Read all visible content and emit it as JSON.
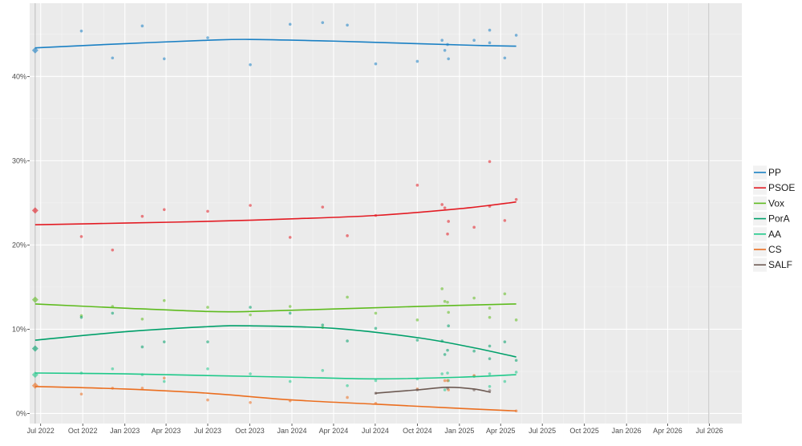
{
  "chart_data": {
    "type": "scatter",
    "title": "",
    "xlabel": "",
    "ylabel": "",
    "ylim": [
      -1.2,
      48.7
    ],
    "xlim": [
      "2022-06-07",
      "2026-09-10"
    ],
    "grid": true,
    "legend_position": "right",
    "x_tick_labels": [
      "Jul 2022",
      "Oct 2022",
      "Jan 2023",
      "Apr 2023",
      "Jul 2023",
      "Oct 2023",
      "Jan 2024",
      "Apr 2024",
      "Jul 2024",
      "Oct 2024",
      "Jan 2025",
      "Apr 2025",
      "Jul 2025",
      "Oct 2025",
      "Jan 2026",
      "Apr 2026",
      "Jul 2026"
    ],
    "x_tick_dates": [
      "2022-07-01",
      "2022-10-01",
      "2023-01-01",
      "2023-04-01",
      "2023-07-01",
      "2023-10-01",
      "2024-01-01",
      "2024-04-01",
      "2024-07-01",
      "2024-10-01",
      "2025-01-01",
      "2025-04-01",
      "2025-07-01",
      "2025-10-01",
      "2026-01-01",
      "2026-04-01",
      "2026-07-01"
    ],
    "y_ticks": [
      0,
      10,
      20,
      30,
      40
    ],
    "y_tick_labels": [
      "0%",
      "10%",
      "20%",
      "30%",
      "40%"
    ],
    "reference_lines": [
      "2022-06-19",
      "2026-06-30"
    ],
    "series": [
      {
        "name": "PP",
        "color": "#1a80c4",
        "election_result": {
          "date": "2022-06-19",
          "value": 43.1
        },
        "points": [
          [
            "2022-09-28",
            45.4
          ],
          [
            "2022-12-05",
            42.2
          ],
          [
            "2023-02-08",
            46.0
          ],
          [
            "2023-03-28",
            42.1
          ],
          [
            "2023-07-01",
            44.6
          ],
          [
            "2023-10-02",
            41.4
          ],
          [
            "2023-12-28",
            46.2
          ],
          [
            "2024-03-08",
            46.4
          ],
          [
            "2024-05-01",
            46.1
          ],
          [
            "2024-07-02",
            41.5
          ],
          [
            "2024-10-01",
            41.8
          ],
          [
            "2024-11-24",
            44.3
          ],
          [
            "2024-11-30",
            43.1
          ],
          [
            "2024-12-06",
            43.8
          ],
          [
            "2024-12-08",
            42.1
          ],
          [
            "2025-02-02",
            44.3
          ],
          [
            "2025-03-08",
            45.5
          ],
          [
            "2025-03-08",
            44.0
          ],
          [
            "2025-04-10",
            42.2
          ],
          [
            "2025-05-05",
            44.9
          ]
        ],
        "trend": [
          [
            "2022-06-19",
            43.4
          ],
          [
            "2023-01-01",
            43.9
          ],
          [
            "2023-07-01",
            44.3
          ],
          [
            "2023-10-01",
            44.4
          ],
          [
            "2024-04-01",
            44.2
          ],
          [
            "2024-10-01",
            43.9
          ],
          [
            "2025-02-01",
            43.7
          ],
          [
            "2025-05-05",
            43.6
          ]
        ]
      },
      {
        "name": "PSOE",
        "color": "#e31b23",
        "election_result": {
          "date": "2022-06-19",
          "value": 24.1
        },
        "points": [
          [
            "2022-09-28",
            21.0
          ],
          [
            "2022-12-05",
            19.4
          ],
          [
            "2023-02-08",
            23.4
          ],
          [
            "2023-03-28",
            24.2
          ],
          [
            "2023-07-01",
            24.0
          ],
          [
            "2023-10-02",
            24.7
          ],
          [
            "2023-12-28",
            20.9
          ],
          [
            "2024-03-08",
            24.5
          ],
          [
            "2024-05-01",
            21.1
          ],
          [
            "2024-07-02",
            23.5
          ],
          [
            "2024-10-01",
            27.1
          ],
          [
            "2024-11-24",
            24.8
          ],
          [
            "2024-11-30",
            24.4
          ],
          [
            "2024-12-06",
            21.3
          ],
          [
            "2024-12-08",
            22.8
          ],
          [
            "2025-02-02",
            22.1
          ],
          [
            "2025-03-08",
            29.9
          ],
          [
            "2025-03-08",
            24.6
          ],
          [
            "2025-04-10",
            22.9
          ],
          [
            "2025-05-05",
            25.4
          ]
        ],
        "trend": [
          [
            "2022-06-19",
            22.4
          ],
          [
            "2023-01-01",
            22.6
          ],
          [
            "2023-07-01",
            22.8
          ],
          [
            "2024-01-01",
            23.1
          ],
          [
            "2024-07-01",
            23.5
          ],
          [
            "2025-01-01",
            24.3
          ],
          [
            "2025-05-05",
            25.1
          ]
        ]
      },
      {
        "name": "Vox",
        "color": "#5ebb1e",
        "election_result": {
          "date": "2022-06-19",
          "value": 13.5
        },
        "points": [
          [
            "2022-09-28",
            11.6
          ],
          [
            "2022-12-05",
            12.7
          ],
          [
            "2023-02-08",
            11.2
          ],
          [
            "2023-03-28",
            13.4
          ],
          [
            "2023-07-01",
            12.6
          ],
          [
            "2023-10-02",
            11.7
          ],
          [
            "2023-12-28",
            12.7
          ],
          [
            "2024-03-08",
            10.2
          ],
          [
            "2024-05-01",
            13.8
          ],
          [
            "2024-07-02",
            11.9
          ],
          [
            "2024-10-01",
            11.1
          ],
          [
            "2024-11-24",
            14.8
          ],
          [
            "2024-11-30",
            13.3
          ],
          [
            "2024-12-06",
            13.2
          ],
          [
            "2024-12-08",
            12.0
          ],
          [
            "2025-02-02",
            13.7
          ],
          [
            "2025-03-08",
            12.5
          ],
          [
            "2025-03-08",
            11.4
          ],
          [
            "2025-04-10",
            14.2
          ],
          [
            "2025-05-05",
            11.1
          ]
        ],
        "trend": [
          [
            "2022-06-19",
            13.0
          ],
          [
            "2023-01-01",
            12.5
          ],
          [
            "2023-07-01",
            12.1
          ],
          [
            "2023-10-01",
            12.1
          ],
          [
            "2024-04-01",
            12.4
          ],
          [
            "2024-10-01",
            12.7
          ],
          [
            "2025-05-05",
            13.0
          ]
        ]
      },
      {
        "name": "PorA",
        "color": "#00a06a",
        "election_result": {
          "date": "2022-06-19",
          "value": 7.7
        },
        "points": [
          [
            "2022-09-28",
            11.4
          ],
          [
            "2022-12-05",
            11.9
          ],
          [
            "2023-02-08",
            7.9
          ],
          [
            "2023-03-28",
            8.5
          ],
          [
            "2023-07-01",
            8.5
          ],
          [
            "2023-10-02",
            12.6
          ],
          [
            "2023-12-28",
            11.9
          ],
          [
            "2024-03-08",
            10.5
          ],
          [
            "2024-05-01",
            8.6
          ],
          [
            "2024-07-02",
            10.1
          ],
          [
            "2024-10-01",
            8.7
          ],
          [
            "2024-11-24",
            8.6
          ],
          [
            "2024-11-30",
            7.0
          ],
          [
            "2024-12-06",
            7.5
          ],
          [
            "2024-12-08",
            10.4
          ],
          [
            "2025-02-02",
            7.4
          ],
          [
            "2025-03-08",
            8.0
          ],
          [
            "2025-03-08",
            6.5
          ],
          [
            "2025-04-10",
            8.5
          ],
          [
            "2025-05-05",
            6.3
          ]
        ],
        "trend": [
          [
            "2022-06-19",
            8.7
          ],
          [
            "2023-01-01",
            9.7
          ],
          [
            "2023-07-01",
            10.3
          ],
          [
            "2023-10-01",
            10.4
          ],
          [
            "2024-04-01",
            10.1
          ],
          [
            "2024-10-01",
            9.0
          ],
          [
            "2025-02-01",
            7.8
          ],
          [
            "2025-05-05",
            6.7
          ]
        ]
      },
      {
        "name": "AA",
        "color": "#1fc98a",
        "election_result": {
          "date": "2022-06-19",
          "value": 4.6
        },
        "points": [
          [
            "2022-09-28",
            4.8
          ],
          [
            "2022-12-05",
            5.3
          ],
          [
            "2023-02-08",
            4.6
          ],
          [
            "2023-03-28",
            3.8
          ],
          [
            "2023-07-01",
            5.3
          ],
          [
            "2023-10-02",
            4.7
          ],
          [
            "2023-12-28",
            3.8
          ],
          [
            "2024-03-08",
            5.1
          ],
          [
            "2024-05-01",
            3.3
          ],
          [
            "2024-07-02",
            3.9
          ],
          [
            "2024-10-01",
            4.1
          ],
          [
            "2024-11-24",
            4.7
          ],
          [
            "2024-11-30",
            2.8
          ],
          [
            "2024-12-06",
            4.8
          ],
          [
            "2024-12-08",
            3.9
          ],
          [
            "2025-02-02",
            4.4
          ],
          [
            "2025-03-08",
            4.7
          ],
          [
            "2025-03-08",
            3.2
          ],
          [
            "2025-04-10",
            3.8
          ],
          [
            "2025-05-05",
            4.9
          ]
        ],
        "trend": [
          [
            "2022-06-19",
            4.8
          ],
          [
            "2023-01-01",
            4.7
          ],
          [
            "2023-07-01",
            4.5
          ],
          [
            "2024-01-01",
            4.3
          ],
          [
            "2024-07-01",
            4.1
          ],
          [
            "2025-01-01",
            4.3
          ],
          [
            "2025-05-05",
            4.6
          ]
        ]
      },
      {
        "name": "CS",
        "color": "#eb6e1f",
        "election_result": {
          "date": "2022-06-19",
          "value": 3.3
        },
        "points": [
          [
            "2022-09-28",
            2.3
          ],
          [
            "2022-12-05",
            3.0
          ],
          [
            "2023-02-08",
            3.0
          ],
          [
            "2023-03-28",
            4.2
          ],
          [
            "2023-07-01",
            1.6
          ],
          [
            "2023-10-02",
            1.3
          ],
          [
            "2023-12-28",
            1.5
          ],
          [
            "2024-05-01",
            1.9
          ],
          [
            "2024-07-02",
            1.2
          ],
          [
            "2024-10-01",
            2.9
          ],
          [
            "2024-11-30",
            3.9
          ],
          [
            "2024-12-06",
            3.9
          ],
          [
            "2024-12-08",
            2.8
          ],
          [
            "2025-02-02",
            4.5
          ],
          [
            "2025-05-05",
            0.3
          ]
        ],
        "trend": [
          [
            "2022-06-19",
            3.2
          ],
          [
            "2023-01-01",
            2.9
          ],
          [
            "2023-07-01",
            2.4
          ],
          [
            "2024-01-01",
            1.6
          ],
          [
            "2024-07-01",
            1.1
          ],
          [
            "2025-01-01",
            0.6
          ],
          [
            "2025-05-05",
            0.3
          ]
        ]
      },
      {
        "name": "SALF",
        "color": "#6d5a53",
        "election_result": null,
        "points": [
          [
            "2024-07-02",
            2.4
          ],
          [
            "2024-10-01",
            2.8
          ],
          [
            "2024-12-06",
            3.0
          ],
          [
            "2025-02-02",
            2.8
          ],
          [
            "2025-03-08",
            2.7
          ]
        ],
        "trend": [
          [
            "2024-07-01",
            2.4
          ],
          [
            "2024-10-01",
            2.8
          ],
          [
            "2024-12-06",
            3.1
          ],
          [
            "2025-02-02",
            2.9
          ],
          [
            "2025-03-10",
            2.5
          ]
        ]
      }
    ]
  }
}
